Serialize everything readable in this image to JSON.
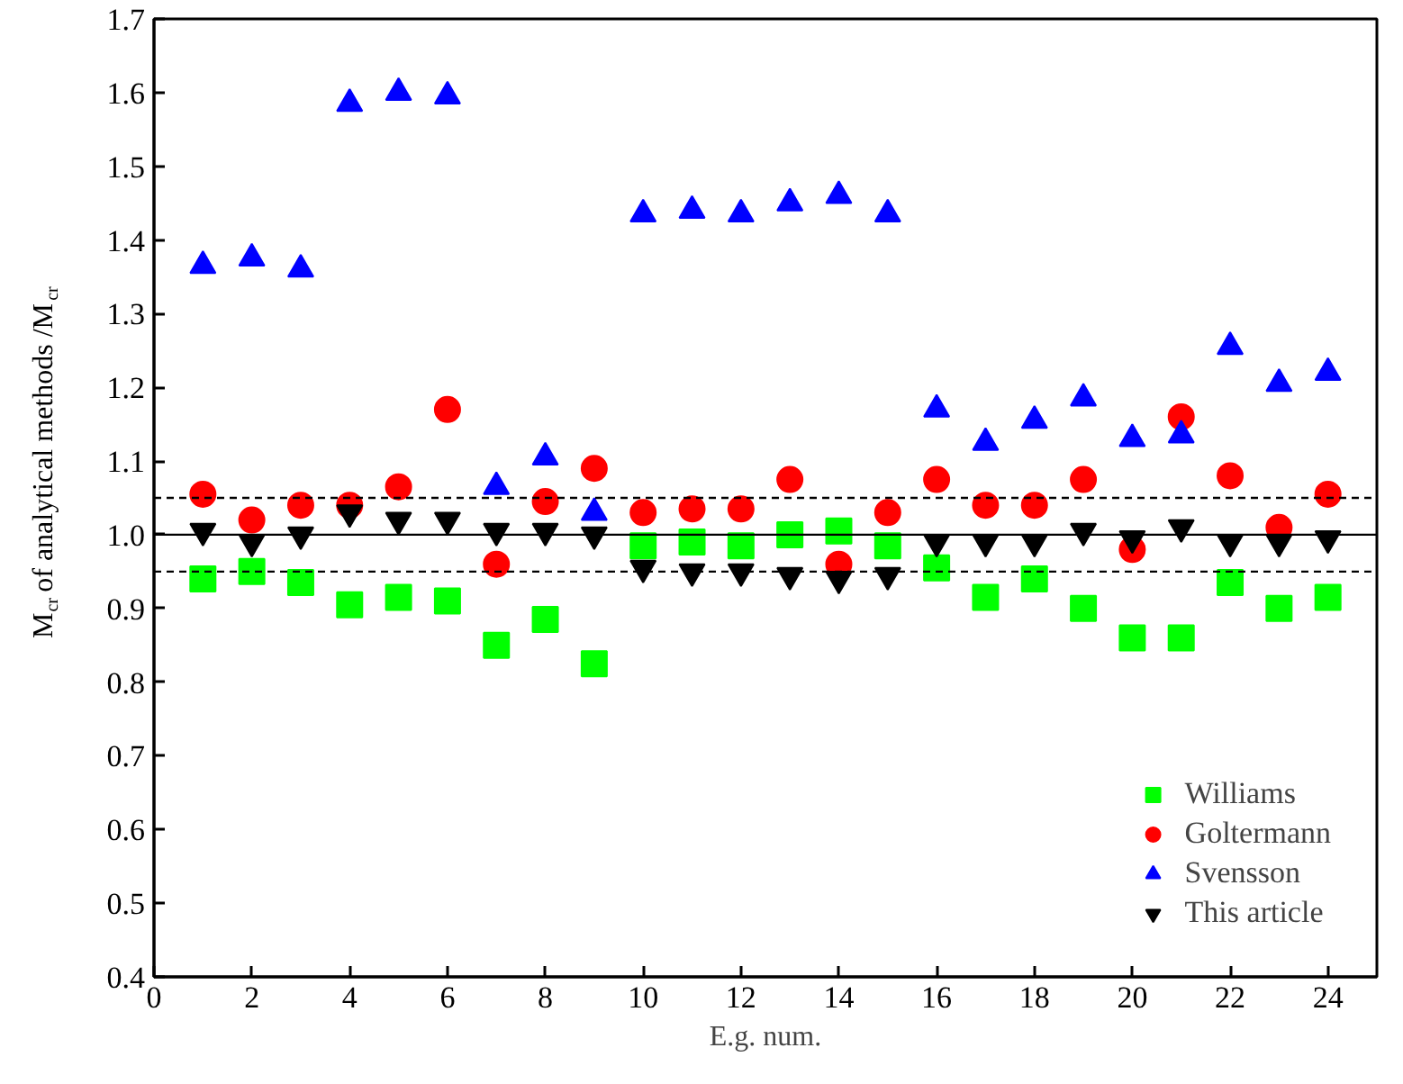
{
  "chart_data": {
    "type": "scatter",
    "xlabel": "E.g. num.",
    "ylabel": "M$_{cr}$ of analytical methods /M$_{cr}$",
    "x": [
      1,
      2,
      3,
      4,
      5,
      6,
      7,
      8,
      9,
      10,
      11,
      12,
      13,
      14,
      15,
      16,
      17,
      18,
      19,
      20,
      21,
      22,
      23,
      24
    ],
    "series": [
      {
        "name": "Williams",
        "color": "#00ff00",
        "marker": "square",
        "values": [
          0.94,
          0.95,
          0.935,
          0.905,
          0.915,
          0.91,
          0.85,
          0.885,
          0.825,
          0.985,
          0.99,
          0.985,
          1.0,
          1.005,
          0.985,
          0.955,
          0.915,
          0.94,
          0.9,
          0.86,
          0.86,
          0.935,
          0.9,
          0.915
        ]
      },
      {
        "name": "Goltermann",
        "color": "#ff0000",
        "marker": "circle",
        "values": [
          1.055,
          1.02,
          1.04,
          1.04,
          1.065,
          1.17,
          0.96,
          1.045,
          1.09,
          1.03,
          1.035,
          1.035,
          1.075,
          0.96,
          1.03,
          1.075,
          1.04,
          1.04,
          1.075,
          0.98,
          1.16,
          1.08,
          1.01,
          1.055
        ]
      },
      {
        "name": "Svensson",
        "color": "#0000ff",
        "marker": "triangle",
        "values": [
          1.365,
          1.375,
          1.36,
          1.585,
          1.6,
          1.595,
          1.065,
          1.105,
          1.03,
          1.435,
          1.44,
          1.435,
          1.45,
          1.46,
          1.435,
          1.17,
          1.125,
          1.155,
          1.185,
          1.13,
          1.135,
          1.255,
          1.205,
          1.22
        ]
      },
      {
        "name": "This article",
        "color": "#000000",
        "values": [
          1.005,
          0.99,
          1.0,
          1.03,
          1.02,
          1.02,
          1.005,
          1.005,
          1.0,
          0.955,
          0.95,
          0.95,
          0.945,
          0.94,
          0.945,
          0.99,
          0.99,
          0.99,
          1.005,
          0.995,
          1.01,
          0.99,
          0.99,
          0.995
        ]
      }
    ],
    "xlim": [
      0,
      25
    ],
    "xticks": [
      0,
      2,
      4,
      6,
      8,
      10,
      12,
      14,
      16,
      18,
      20,
      22,
      24
    ],
    "ylim": [
      0.4,
      1.7
    ],
    "yticks": [
      0.4,
      0.5,
      0.6,
      0.7,
      0.8,
      0.9,
      {
        "value": 1.0,
        "label": "1.0"
      },
      1.1,
      1.2,
      1.3,
      1.4,
      1.5,
      1.6,
      1.7
    ],
    "ref_lines": [
      {
        "axis": "y",
        "value": 1.05,
        "line_style": "dashed",
        "color": "#000000"
      },
      {
        "axis": "y",
        "value": 1.0,
        "line_style": "solid",
        "color": "#000000"
      },
      {
        "axis": "y",
        "value": 0.95,
        "line_style": "dashed",
        "color": "#000000"
      }
    ],
    "grid": false,
    "legend": "bottom right"
  }
}
